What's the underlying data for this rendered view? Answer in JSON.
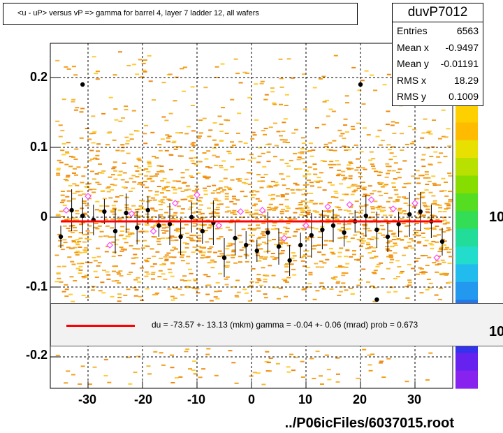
{
  "title": "<u - uP>       versus   vP =>  gamma for barrel 4, layer 7 ladder 12, all wafers",
  "stats": {
    "name": "duvP7012",
    "rows": [
      {
        "label": "Entries",
        "value": "6563"
      },
      {
        "label": "Mean x",
        "value": "-0.9497"
      },
      {
        "label": "Mean y",
        "value": "-0.01191"
      },
      {
        "label": "RMS x",
        "value": "18.29"
      },
      {
        "label": "RMS y",
        "value": "0.1009"
      }
    ]
  },
  "fit_text": "du =  -73.57 +- 13.13 (mkm) gamma =   -0.04 +-  0.06 (mrad) prob = 0.673",
  "footer": "../P06icFiles/6037015.root",
  "z_labels": [
    "10",
    "10"
  ],
  "colors": {
    "fit_line": "#ff0000",
    "profile_points": "#000000",
    "open_markers": "#ff44ff",
    "scatter": "#f0a020"
  },
  "chart_data": {
    "type": "scatter",
    "xlim": [
      -37,
      37
    ],
    "ylim": [
      -0.25,
      0.25
    ],
    "x_ticks": [
      "-30",
      "-20",
      "-10",
      "0",
      "10",
      "20",
      "30"
    ],
    "y_ticks": [
      "0.2",
      "0.1",
      "0",
      "-0.1",
      "-0.2"
    ],
    "grid": true,
    "fit_line": {
      "x": [
        -35,
        35
      ],
      "y": [
        -0.006,
        -0.006
      ]
    },
    "outliers": [
      {
        "x": -31,
        "y": 0.19
      },
      {
        "x": 20,
        "y": 0.19
      },
      {
        "x": 23,
        "y": -0.118
      }
    ],
    "profile_series": [
      {
        "x": -35,
        "y": -0.028
      },
      {
        "x": -33,
        "y": 0.01
      },
      {
        "x": -31,
        "y": 0.002
      },
      {
        "x": -29,
        "y": -0.004
      },
      {
        "x": -27,
        "y": 0.008
      },
      {
        "x": -25,
        "y": -0.02
      },
      {
        "x": -23,
        "y": 0.006
      },
      {
        "x": -21,
        "y": -0.015
      },
      {
        "x": -19,
        "y": 0.01
      },
      {
        "x": -17,
        "y": -0.012
      },
      {
        "x": -15,
        "y": -0.01
      },
      {
        "x": -13,
        "y": -0.028
      },
      {
        "x": -11,
        "y": 0.0
      },
      {
        "x": -9,
        "y": -0.02
      },
      {
        "x": -7,
        "y": -0.008
      },
      {
        "x": -5,
        "y": -0.058
      },
      {
        "x": -3,
        "y": -0.03
      },
      {
        "x": -1,
        "y": -0.04
      },
      {
        "x": 1,
        "y": -0.048
      },
      {
        "x": 3,
        "y": -0.022
      },
      {
        "x": 5,
        "y": -0.042
      },
      {
        "x": 7,
        "y": -0.062
      },
      {
        "x": 9,
        "y": -0.04
      },
      {
        "x": 11,
        "y": -0.026
      },
      {
        "x": 13,
        "y": -0.018
      },
      {
        "x": 15,
        "y": -0.012
      },
      {
        "x": 17,
        "y": -0.022
      },
      {
        "x": 19,
        "y": -0.006
      },
      {
        "x": 21,
        "y": 0.002
      },
      {
        "x": 23,
        "y": -0.018
      },
      {
        "x": 25,
        "y": -0.028
      },
      {
        "x": 27,
        "y": -0.01
      },
      {
        "x": 29,
        "y": 0.004
      },
      {
        "x": 31,
        "y": 0.008
      },
      {
        "x": 33,
        "y": -0.006
      },
      {
        "x": 35,
        "y": -0.035
      }
    ],
    "open_series": [
      {
        "x": -34,
        "y": 0.01
      },
      {
        "x": -30,
        "y": 0.03
      },
      {
        "x": -26,
        "y": -0.04
      },
      {
        "x": -22,
        "y": 0.005
      },
      {
        "x": -18,
        "y": -0.02
      },
      {
        "x": -14,
        "y": 0.02
      },
      {
        "x": -10,
        "y": 0.032
      },
      {
        "x": -6,
        "y": -0.012
      },
      {
        "x": -2,
        "y": 0.008
      },
      {
        "x": 2,
        "y": 0.01
      },
      {
        "x": 6,
        "y": -0.03
      },
      {
        "x": 10,
        "y": -0.012
      },
      {
        "x": 14,
        "y": 0.015
      },
      {
        "x": 18,
        "y": 0.018
      },
      {
        "x": 22,
        "y": 0.025
      },
      {
        "x": 26,
        "y": 0.012
      },
      {
        "x": 30,
        "y": 0.02
      },
      {
        "x": 34,
        "y": -0.058
      }
    ]
  }
}
